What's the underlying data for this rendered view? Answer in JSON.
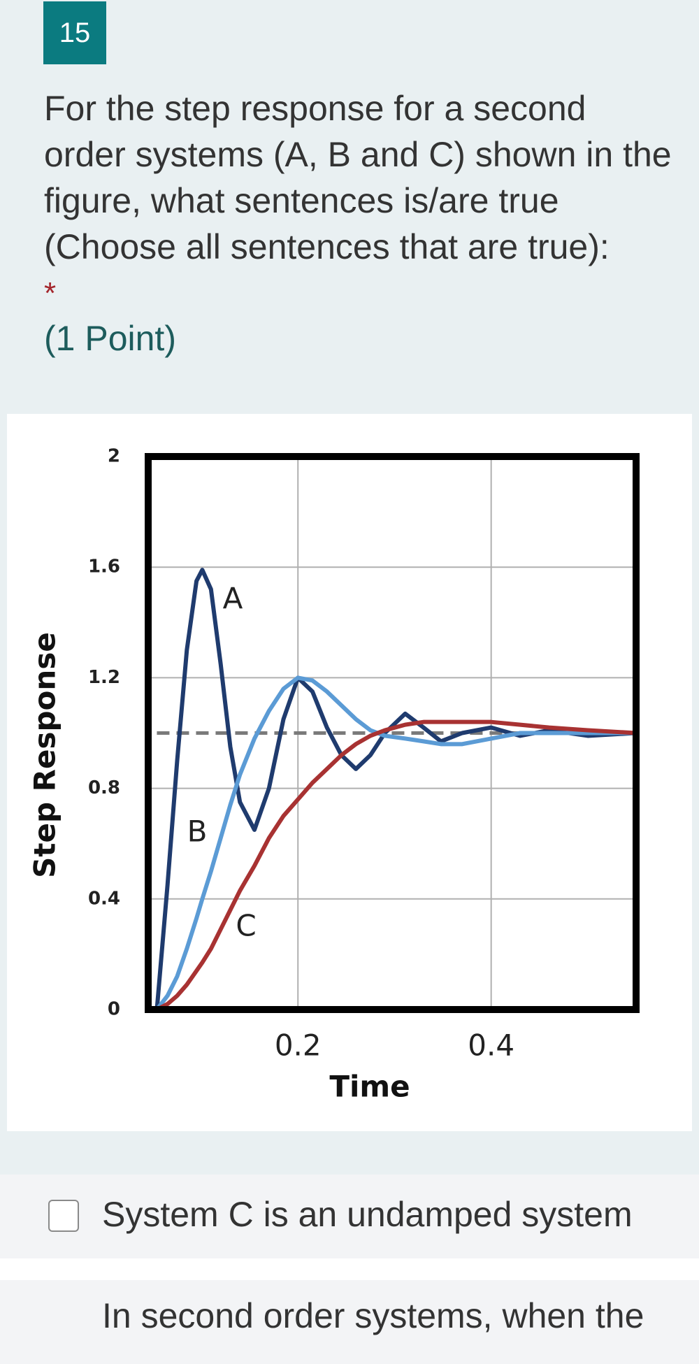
{
  "question": {
    "number": "15",
    "text": "For the step response for a second order systems (A, B and C) shown in the figure, what sentences is/are true (Choose all sentences that are true):",
    "required_mark": "*",
    "points": "(1 Point)"
  },
  "chart_data": {
    "type": "line",
    "x_label": "Time",
    "y_label": "Step Response",
    "x": [
      0.054,
      0.065,
      0.075,
      0.085,
      0.095,
      0.101,
      0.11,
      0.12,
      0.13,
      0.14,
      0.155,
      0.17,
      0.185,
      0.2,
      0.215,
      0.23,
      0.245,
      0.26,
      0.275,
      0.29,
      0.311,
      0.33,
      0.348,
      0.37,
      0.4,
      0.43,
      0.46,
      0.5,
      0.55
    ],
    "series": [
      {
        "name": "A",
        "color": "#1f3b6e",
        "values": [
          0,
          0.45,
          0.9,
          1.3,
          1.55,
          1.59,
          1.52,
          1.25,
          0.95,
          0.75,
          0.65,
          0.8,
          1.05,
          1.2,
          1.15,
          1.02,
          0.92,
          0.87,
          0.92,
          1.0,
          1.07,
          1.02,
          0.97,
          1.0,
          1.02,
          0.99,
          1.01,
          0.99,
          1.0
        ]
      },
      {
        "name": "B",
        "color": "#5b9bd5",
        "values": [
          0,
          0.05,
          0.12,
          0.22,
          0.33,
          0.4,
          0.5,
          0.62,
          0.74,
          0.85,
          0.98,
          1.08,
          1.16,
          1.2,
          1.19,
          1.15,
          1.1,
          1.05,
          1.01,
          0.99,
          0.98,
          0.97,
          0.96,
          0.96,
          0.98,
          1.0,
          1.0,
          1.0,
          1.0
        ]
      },
      {
        "name": "C",
        "color": "#a83232",
        "values": [
          0,
          0.02,
          0.05,
          0.09,
          0.14,
          0.17,
          0.22,
          0.29,
          0.36,
          0.43,
          0.52,
          0.62,
          0.7,
          0.76,
          0.82,
          0.87,
          0.92,
          0.96,
          0.99,
          1.01,
          1.03,
          1.04,
          1.04,
          1.04,
          1.04,
          1.03,
          1.02,
          1.01,
          1.0
        ]
      }
    ],
    "reference_y": 1,
    "xlim": [
      0.045,
      0.55
    ],
    "xticks": [
      0.2,
      0.4
    ],
    "ylim": [
      0,
      2
    ],
    "yticks": [
      0,
      0.4,
      0.8,
      1.2,
      1.6,
      2
    ],
    "grid": true
  },
  "options": [
    {
      "text": "System C is an undamped system",
      "checked": false
    },
    {
      "text": "In second order systems, when the"
    }
  ]
}
